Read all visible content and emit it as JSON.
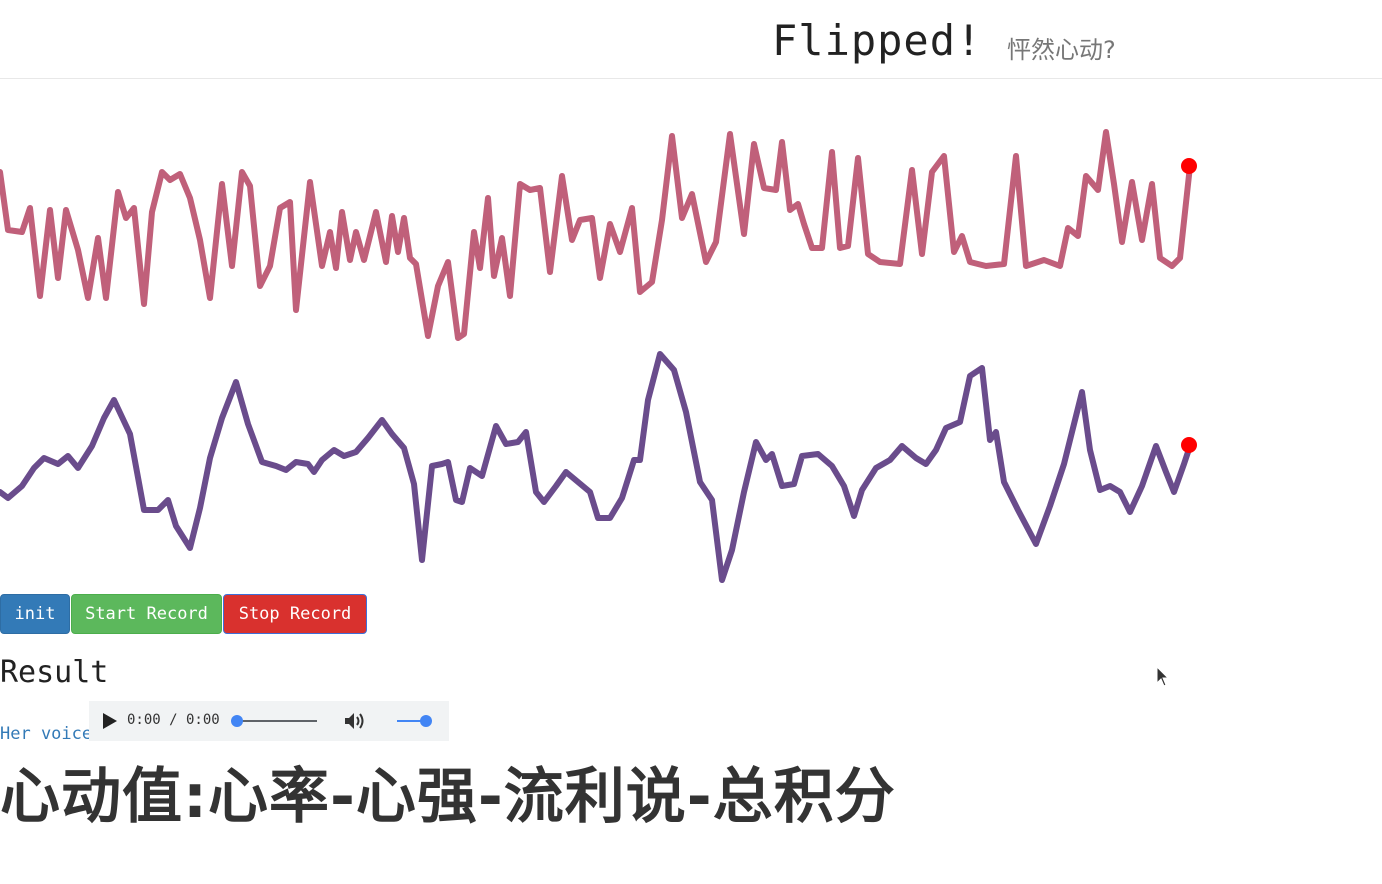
{
  "header": {
    "title": "Flipped!",
    "subtitle": "怦然心动?"
  },
  "waves": {
    "top_color": "#c0607a",
    "bottom_color": "#6a4c8c",
    "marker_color": "#ff0000"
  },
  "buttons": {
    "init": "init",
    "start": "Start Record",
    "stop": "Stop Record"
  },
  "result": {
    "heading": "Result",
    "voice_label": "Her voice",
    "player_time": "0:00 / 0:00",
    "score_text": "心动值:心率-心强-流利说-总积分"
  }
}
